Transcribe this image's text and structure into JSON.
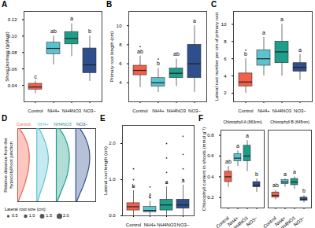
{
  "chart_data": [
    {
      "type": "box",
      "title": "A",
      "y_label": "Shoot biomass (g/plant)",
      "categories": [
        "Control",
        "NH4+",
        "NH4NO3",
        "NO3−"
      ],
      "colors": [
        "#F0604D",
        "#5BC3D0",
        "#1E9E8A",
        "#2F4E8C"
      ],
      "ylim": [
        0.02,
        0.13
      ],
      "yticks": [
        0.04,
        0.06,
        0.08,
        0.1,
        0.12
      ],
      "series": [
        {
          "boxes": [
            {
              "min": 0.03,
              "q1": 0.035,
              "median": 0.038,
              "q3": 0.042,
              "max": 0.045,
              "outliers": []
            },
            {
              "min": 0.065,
              "q1": 0.078,
              "median": 0.085,
              "q3": 0.092,
              "max": 0.1,
              "outliers": []
            },
            {
              "min": 0.075,
              "q1": 0.09,
              "median": 0.097,
              "q3": 0.105,
              "max": 0.115,
              "outliers": []
            },
            {
              "min": 0.045,
              "q1": 0.055,
              "median": 0.065,
              "q3": 0.085,
              "max": 0.1,
              "outliers": []
            }
          ],
          "letters": [
            "c",
            "ab",
            "a",
            "b"
          ]
        }
      ]
    },
    {
      "type": "box",
      "title": "B",
      "y_label": "Primary root length (cm)",
      "categories": [
        "Control",
        "NH4+",
        "NH4NO3",
        "NO3−"
      ],
      "colors": [
        "#F0604D",
        "#5BC3D0",
        "#1E9E8A",
        "#2F4E8C"
      ],
      "ylim": [
        2,
        11.5
      ],
      "yticks": [
        4,
        6,
        8,
        10
      ],
      "series": [
        {
          "boxes": [
            {
              "min": 3.5,
              "q1": 4.8,
              "median": 5.3,
              "q3": 5.8,
              "max": 6.8,
              "outliers": [
                7.8
              ]
            },
            {
              "min": 3,
              "q1": 3.6,
              "median": 4,
              "q3": 4.5,
              "max": 5.5,
              "outliers": [
                6.5
              ]
            },
            {
              "min": 3.6,
              "q1": 4.5,
              "median": 5,
              "q3": 5.5,
              "max": 6.5,
              "outliers": []
            },
            {
              "min": 3,
              "q1": 4.5,
              "median": 6,
              "q3": 8,
              "max": 10,
              "outliers": []
            }
          ],
          "letters": [
            "ab",
            "b",
            "ab",
            "a"
          ]
        }
      ]
    },
    {
      "type": "box",
      "title": "C",
      "y_label": "Lateral root number per cm of primary root",
      "categories": [
        "Control",
        "NH4+",
        "NH4NO3",
        "NO3−"
      ],
      "colors": [
        "#F0604D",
        "#5BC3D0",
        "#1E9E8A",
        "#2F4E8C"
      ],
      "ylim": [
        1,
        11.5
      ],
      "yticks": [
        2,
        4,
        6,
        8,
        10
      ],
      "series": [
        {
          "boxes": [
            {
              "min": 2,
              "q1": 2.8,
              "median": 3.3,
              "q3": 4.3,
              "max": 6,
              "outliers": [
                7
              ]
            },
            {
              "min": 4,
              "q1": 5.2,
              "median": 6,
              "q3": 7,
              "max": 8.5,
              "outliers": []
            },
            {
              "min": 4,
              "q1": 5.5,
              "median": 6.8,
              "q3": 8,
              "max": 10,
              "outliers": []
            },
            {
              "min": 3.5,
              "q1": 4.5,
              "median": 5,
              "q3": 5.5,
              "max": 6.5,
              "outliers": []
            }
          ],
          "letters": [
            "b",
            "a",
            "a",
            "a"
          ]
        }
      ]
    },
    {
      "type": "density",
      "title": "D",
      "y_label": "Relative distance from the hypocotyl/root junction",
      "categories": [
        "Control",
        "NH4+",
        "NH4NO3",
        "NO3−"
      ],
      "colors": [
        "#F0604D",
        "#5BC3D0",
        "#1E9E8A",
        "#2F4E8C"
      ],
      "tick_labels": false,
      "ylim": [
        0,
        1
      ],
      "y_positions": [
        0,
        0.1,
        0.2,
        0.3,
        0.4,
        0.5,
        0.6,
        0.7,
        0.8,
        0.9,
        1
      ],
      "widths": [
        [
          0.1,
          0.35,
          0.5,
          0.6,
          0.62,
          0.6,
          0.55,
          0.45,
          0.35,
          0.2,
          0.05
        ],
        [
          0.1,
          0.3,
          0.45,
          0.55,
          0.6,
          0.58,
          0.5,
          0.4,
          0.3,
          0.15,
          0.05
        ],
        [
          0.15,
          0.4,
          0.55,
          0.65,
          0.68,
          0.65,
          0.6,
          0.5,
          0.35,
          0.2,
          0.05
        ],
        [
          0.2,
          0.45,
          0.6,
          0.7,
          0.72,
          0.7,
          0.62,
          0.5,
          0.38,
          0.2,
          0.05
        ]
      ],
      "legend_title": "Lateral root size (cm):",
      "size_levels": [
        {
          "value": 0.5,
          "label": "0.5"
        },
        {
          "value": 1,
          "label": "1.0"
        },
        {
          "value": 1.5,
          "label": "1.5"
        },
        {
          "value": 2,
          "label": "2.0"
        }
      ]
    },
    {
      "type": "box",
      "title": "E",
      "y_label": "Lateral root length (cm)",
      "categories": [
        "Control",
        "NH4+",
        "NH4NO3",
        "NO3−"
      ],
      "colors": [
        "#F0604D",
        "#5BC3D0",
        "#1E9E8A",
        "#2F4E8C"
      ],
      "ylim": [
        0,
        2.5
      ],
      "yticks": [
        0,
        1,
        2
      ],
      "series": [
        {
          "boxes": [
            {
              "min": 0,
              "q1": 0.15,
              "median": 0.25,
              "q3": 0.35,
              "max": 0.7,
              "outliers": [
                0.8,
                1,
                1.3
              ]
            },
            {
              "min": 0,
              "q1": 0.1,
              "median": 0.15,
              "q3": 0.25,
              "max": 0.4,
              "outliers": [
                0.5,
                0.6,
                0.8
              ]
            },
            {
              "min": 0,
              "q1": 0.15,
              "median": 0.3,
              "q3": 0.45,
              "max": 0.8,
              "outliers": [
                0.9,
                1.2,
                1.6,
                2
              ]
            },
            {
              "min": 0,
              "q1": 0.2,
              "median": 0.3,
              "q3": 0.45,
              "max": 0.85,
              "outliers": [
                1,
                1.3,
                1.7,
                2.2
              ]
            }
          ],
          "letters": [
            "b",
            "c",
            "a",
            "a"
          ]
        }
      ]
    },
    {
      "type": "box",
      "title": "F",
      "y_label": "Chlorophyll content in shoots (mmol g⁻¹)",
      "categories": [
        "Control",
        "NH4+",
        "NH4NO3",
        "NO3−"
      ],
      "colors": [
        "#F0604D",
        "#5BC3D0",
        "#1E9E8A",
        "#2F4E8C"
      ],
      "ylim": [
        0.1,
        0.85
      ],
      "yticks": [
        0.2,
        0.4,
        0.6,
        0.8
      ],
      "series": [
        {
          "name": "Chlorophyll A (663nm)",
          "boxes": [
            {
              "min": 0.3,
              "q1": 0.35,
              "median": 0.4,
              "q3": 0.45,
              "max": 0.5,
              "outliers": []
            },
            {
              "min": 0.5,
              "q1": 0.55,
              "median": 0.58,
              "q3": 0.62,
              "max": 0.65,
              "outliers": []
            },
            {
              "min": 0.45,
              "q1": 0.55,
              "median": 0.6,
              "q3": 0.7,
              "max": 0.75,
              "outliers": []
            },
            {
              "min": 0.25,
              "q1": 0.3,
              "median": 0.32,
              "q3": 0.35,
              "max": 0.38,
              "outliers": []
            }
          ],
          "letters": [
            "ab",
            "a",
            "a",
            "b"
          ]
        },
        {
          "name": "Chlorophyll B (645nm)",
          "boxes": [
            {
              "min": 0.18,
              "q1": 0.2,
              "median": 0.22,
              "q3": 0.25,
              "max": 0.27,
              "outliers": []
            },
            {
              "min": 0.3,
              "q1": 0.33,
              "median": 0.35,
              "q3": 0.37,
              "max": 0.38,
              "outliers": []
            },
            {
              "min": 0.28,
              "q1": 0.32,
              "median": 0.35,
              "q3": 0.38,
              "max": 0.4,
              "outliers": []
            },
            {
              "min": 0.15,
              "q1": 0.17,
              "median": 0.18,
              "q3": 0.2,
              "max": 0.22,
              "outliers": []
            }
          ],
          "letters": [
            "ab",
            "a",
            "a",
            "b"
          ]
        }
      ]
    }
  ]
}
